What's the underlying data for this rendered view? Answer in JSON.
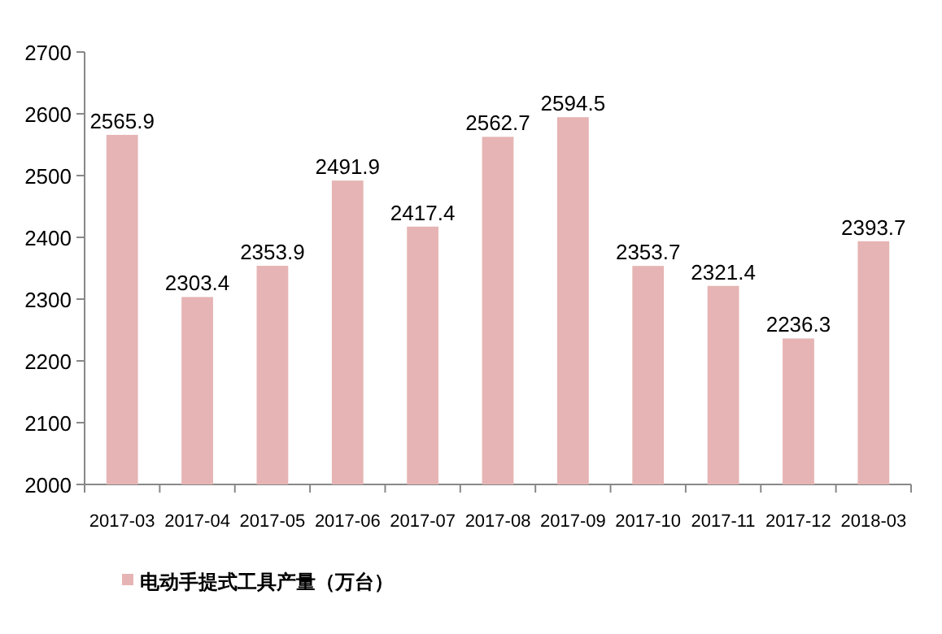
{
  "chart_data": {
    "type": "bar",
    "categories": [
      "2017-03",
      "2017-04",
      "2017-05",
      "2017-06",
      "2017-07",
      "2017-08",
      "2017-09",
      "2017-10",
      "2017-11",
      "2017-12",
      "2018-03"
    ],
    "series": [
      {
        "name": "电动手提式工具产量（万台）",
        "color": "#e6b4b4",
        "values": [
          2565.9,
          2303.4,
          2353.9,
          2491.9,
          2417.4,
          2562.7,
          2594.5,
          2353.7,
          2321.4,
          2236.3,
          2393.7
        ]
      }
    ],
    "ylim": [
      2000,
      2700
    ],
    "yticks": [
      2000,
      2100,
      2200,
      2300,
      2400,
      2500,
      2600,
      2700
    ],
    "data_labels": true,
    "legend": "bottom left"
  }
}
